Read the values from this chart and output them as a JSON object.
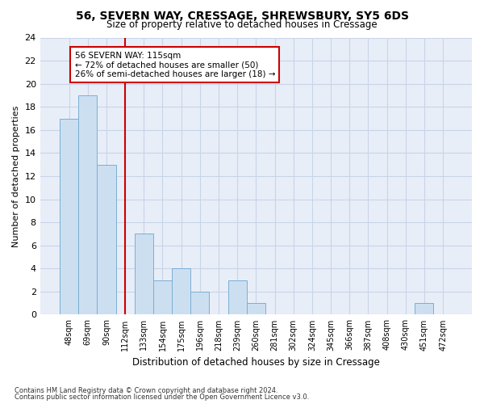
{
  "title1": "56, SEVERN WAY, CRESSAGE, SHREWSBURY, SY5 6DS",
  "title2": "Size of property relative to detached houses in Cressage",
  "xlabel": "Distribution of detached houses by size in Cressage",
  "ylabel": "Number of detached properties",
  "categories": [
    "48sqm",
    "69sqm",
    "90sqm",
    "112sqm",
    "133sqm",
    "154sqm",
    "175sqm",
    "196sqm",
    "218sqm",
    "239sqm",
    "260sqm",
    "281sqm",
    "302sqm",
    "324sqm",
    "345sqm",
    "366sqm",
    "387sqm",
    "408sqm",
    "430sqm",
    "451sqm",
    "472sqm"
  ],
  "values": [
    17,
    19,
    13,
    0,
    7,
    3,
    4,
    2,
    0,
    3,
    1,
    0,
    0,
    0,
    0,
    0,
    0,
    0,
    0,
    1,
    0
  ],
  "bar_color": "#ccdff0",
  "bar_edge_color": "#7bafd4",
  "bar_edge_width": 0.7,
  "red_line_x": 3.0,
  "annotation_text": "56 SEVERN WAY: 115sqm\n← 72% of detached houses are smaller (50)\n26% of semi-detached houses are larger (18) →",
  "annotation_box_color": "#ffffff",
  "annotation_box_edge_color": "#cc0000",
  "ylim": [
    0,
    24
  ],
  "yticks": [
    0,
    2,
    4,
    6,
    8,
    10,
    12,
    14,
    16,
    18,
    20,
    22,
    24
  ],
  "grid_color": "#c8d4e8",
  "background_color": "#e8eef8",
  "footer_line1": "Contains HM Land Registry data © Crown copyright and database right 2024.",
  "footer_line2": "Contains public sector information licensed under the Open Government Licence v3.0.",
  "red_line_color": "#cc0000"
}
